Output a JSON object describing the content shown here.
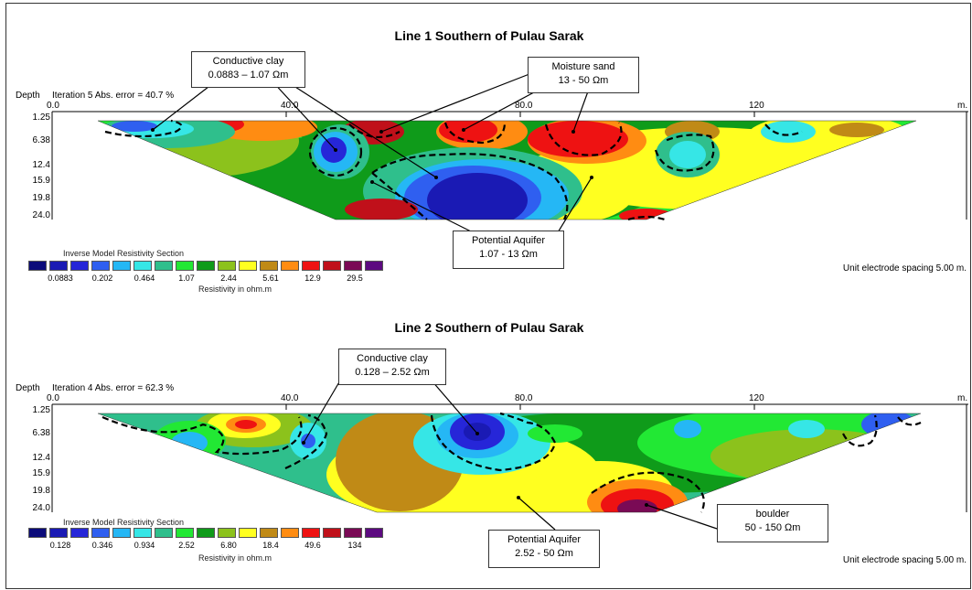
{
  "scale": {
    "unit_label": "m.",
    "distance_ticks": [
      "0.0",
      "40.0",
      "80.0",
      "120"
    ]
  },
  "sections": [
    {
      "title": "Line 1 Southern of Pulau Sarak",
      "iteration_label": "Iteration 5 Abs. error = 40.7 %",
      "depth_label": "Depth",
      "depths": [
        "1.25",
        "6.38",
        "12.4",
        "15.9",
        "19.8",
        "24.0"
      ],
      "legend": {
        "title": "Inverse Model Resistivity Section",
        "unit": "Resistivity in ohm.m",
        "values": [
          "0.0883",
          "0.202",
          "0.464",
          "1.07",
          "2.44",
          "5.61",
          "12.9",
          "29.5"
        ],
        "colors": [
          "#0b0b7a",
          "#1a1ab4",
          "#2626d8",
          "#2f5ff0",
          "#25b7f5",
          "#36e6e6",
          "#2fbf8c",
          "#22e834",
          "#0f9b1a",
          "#8cc21c",
          "#ffff20",
          "#c08a16",
          "#ff8c12",
          "#ee1212",
          "#c0101a",
          "#7a0a55",
          "#5c0a80"
        ]
      },
      "spacing_label": "Unit electrode spacing 5.00 m.",
      "callouts": [
        {
          "lines": [
            "Conductive clay",
            "0.0883 – 1.07 Ωm"
          ]
        },
        {
          "lines": [
            "Moisture sand",
            "13 - 50 Ωm"
          ]
        },
        {
          "lines": [
            "Potential Aquifer",
            "1.07 - 13 Ωm"
          ]
        }
      ]
    },
    {
      "title": "Line 2 Southern of Pulau Sarak",
      "iteration_label": "Iteration 4 Abs. error = 62.3 %",
      "depth_label": "Depth",
      "depths": [
        "1.25",
        "6.38",
        "12.4",
        "15.9",
        "19.8",
        "24.0"
      ],
      "legend": {
        "title": "Inverse Model Resistivity Section",
        "unit": "Resistivity in ohm.m",
        "values": [
          "0.128",
          "0.346",
          "0.934",
          "2.52",
          "6.80",
          "18.4",
          "49.6",
          "134"
        ],
        "colors": [
          "#0b0b7a",
          "#1a1ab4",
          "#2626d8",
          "#2f5ff0",
          "#25b7f5",
          "#36e6e6",
          "#2fbf8c",
          "#22e834",
          "#0f9b1a",
          "#8cc21c",
          "#ffff20",
          "#c08a16",
          "#ff8c12",
          "#ee1212",
          "#c0101a",
          "#7a0a55",
          "#5c0a80"
        ]
      },
      "spacing_label": "Unit electrode spacing 5.00 m.",
      "callouts": [
        {
          "lines": [
            "Conductive clay",
            "0.128 – 2.52 Ωm"
          ]
        },
        {
          "lines": [
            "Potential Aquifer",
            "2.52 - 50 Ωm"
          ]
        },
        {
          "lines": [
            "boulder",
            "50 - 150 Ωm"
          ]
        }
      ]
    }
  ]
}
